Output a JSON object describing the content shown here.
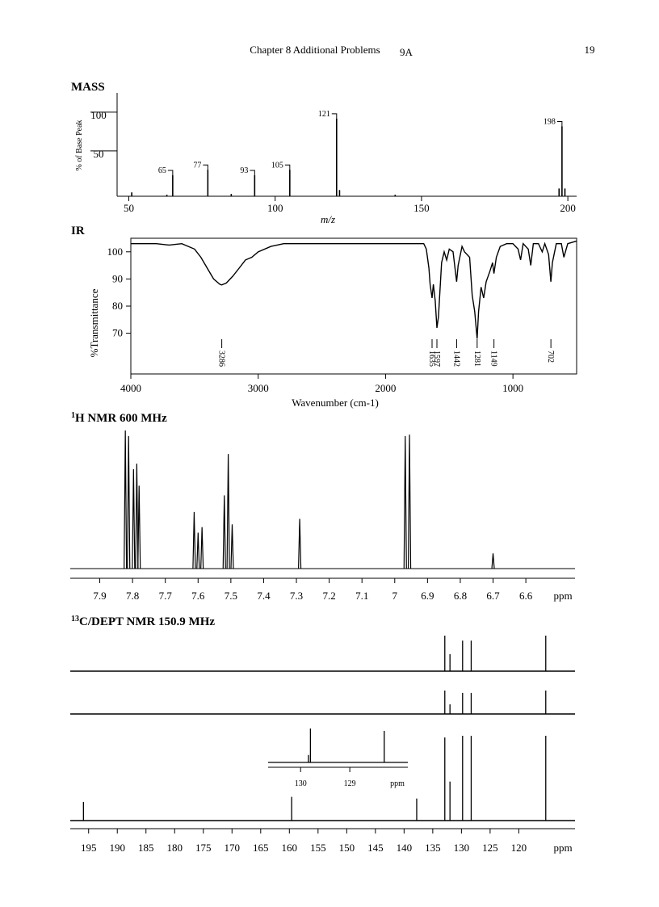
{
  "header": {
    "chapter": "Chapter 8   Additional Problems",
    "problem": "9A",
    "page": "19"
  },
  "chart_data": [
    {
      "type": "stick",
      "title": "MASS",
      "ylabel": "% of Base Peak",
      "xlabel": "m/z",
      "x": [
        51,
        63,
        65,
        77,
        85,
        93,
        105,
        121,
        122,
        141,
        197,
        198,
        199
      ],
      "values": [
        5,
        2,
        27,
        34,
        3,
        27,
        34,
        100,
        8,
        2,
        10,
        90,
        10
      ],
      "peak_labels": [
        65,
        77,
        93,
        105,
        121,
        198
      ],
      "xlim": [
        46,
        203
      ],
      "ylim": [
        0,
        130
      ],
      "xticks": [
        50,
        100,
        150,
        200
      ],
      "yticks": [
        50,
        100
      ]
    },
    {
      "type": "line",
      "title": "IR",
      "ylabel": "%Transmittance",
      "xlabel": "Wavenumber (cm-1)",
      "x": [
        4000,
        3800,
        3700,
        3600,
        3500,
        3450,
        3400,
        3350,
        3300,
        3286,
        3250,
        3200,
        3150,
        3100,
        3050,
        3000,
        2900,
        2800,
        2500,
        2000,
        1700,
        1680,
        1660,
        1650,
        1635,
        1625,
        1610,
        1597,
        1585,
        1560,
        1540,
        1520,
        1500,
        1470,
        1442,
        1430,
        1400,
        1380,
        1340,
        1320,
        1300,
        1281,
        1270,
        1250,
        1230,
        1210,
        1180,
        1160,
        1149,
        1130,
        1100,
        1050,
        1000,
        960,
        940,
        920,
        880,
        860,
        840,
        800,
        770,
        750,
        720,
        702,
        690,
        660,
        620,
        600,
        570,
        500
      ],
      "values": [
        103,
        103,
        102.5,
        103,
        101,
        98,
        94,
        90,
        88,
        87.8,
        88.5,
        91,
        94,
        97,
        98,
        100,
        102,
        103,
        103,
        103,
        103,
        101,
        94,
        88,
        83,
        88,
        82,
        72,
        76,
        96,
        100,
        97,
        101,
        100,
        89,
        95,
        102,
        100,
        98,
        84,
        78,
        68,
        78,
        87,
        83,
        89,
        93,
        96,
        92,
        98,
        102,
        103,
        103,
        101,
        97,
        103,
        101,
        95,
        103,
        103,
        100,
        103,
        99,
        89,
        96,
        103,
        103,
        98,
        103,
        104
      ],
      "peak_labels": [
        3286,
        1635,
        1597,
        1442,
        1281,
        1149,
        702
      ],
      "xlim": [
        4000,
        500
      ],
      "ylim": [
        55,
        105
      ],
      "xticks": [
        4000,
        3000,
        2000,
        1000
      ],
      "yticks": [
        70,
        80,
        90,
        100
      ]
    },
    {
      "type": "nmr",
      "title_sup": "1",
      "title": "H NMR 600 MHz",
      "xlabel": "ppm",
      "x": [
        7.822,
        7.812,
        7.797,
        7.787,
        7.78,
        7.612,
        7.6,
        7.588,
        7.52,
        7.508,
        7.496,
        7.29,
        6.968,
        6.955,
        6.7
      ],
      "values": [
        100,
        96,
        72,
        76,
        60,
        41,
        26,
        30,
        53,
        83,
        32,
        36,
        96,
        97,
        11
      ],
      "xlim": [
        7.99,
        6.45
      ],
      "ylim": [
        0,
        100
      ],
      "xticks": [
        7.9,
        7.8,
        7.7,
        7.6,
        7.5,
        7.4,
        7.3,
        7.2,
        7.1,
        7.0,
        6.9,
        6.8,
        6.7,
        6.6
      ]
    },
    {
      "type": "nmr-stack",
      "title_sup": "13",
      "title": "C/DEPT NMR 150.9 MHz",
      "xlabel": "ppm",
      "xlim": [
        198.2,
        110.2
      ],
      "ylim": [
        0,
        100
      ],
      "xticks": [
        195,
        190,
        185,
        180,
        175,
        170,
        165,
        160,
        155,
        150,
        145,
        140,
        135,
        130,
        125,
        120
      ],
      "traces": [
        {
          "x": [
            132.9,
            132.0,
            129.8,
            128.3,
            115.3
          ],
          "values": [
            100,
            48,
            86,
            86,
            100
          ]
        },
        {
          "x": [
            132.9,
            132.0,
            129.8,
            128.3,
            115.3
          ],
          "values": [
            100,
            41,
            90,
            90,
            100
          ]
        },
        {
          "x": [
            195.9,
            159.6,
            137.8,
            132.9,
            132.0,
            129.8,
            128.3,
            115.3
          ],
          "values": [
            22,
            28,
            26,
            98,
            46,
            100,
            100,
            100
          ]
        }
      ],
      "inset": {
        "x": [
          129.84,
          129.8,
          128.3
        ],
        "values": [
          22,
          100,
          93
        ],
        "xlim": [
          130.66,
          127.82
        ],
        "xticks": [
          130,
          129
        ],
        "xlabel": "ppm"
      }
    }
  ]
}
